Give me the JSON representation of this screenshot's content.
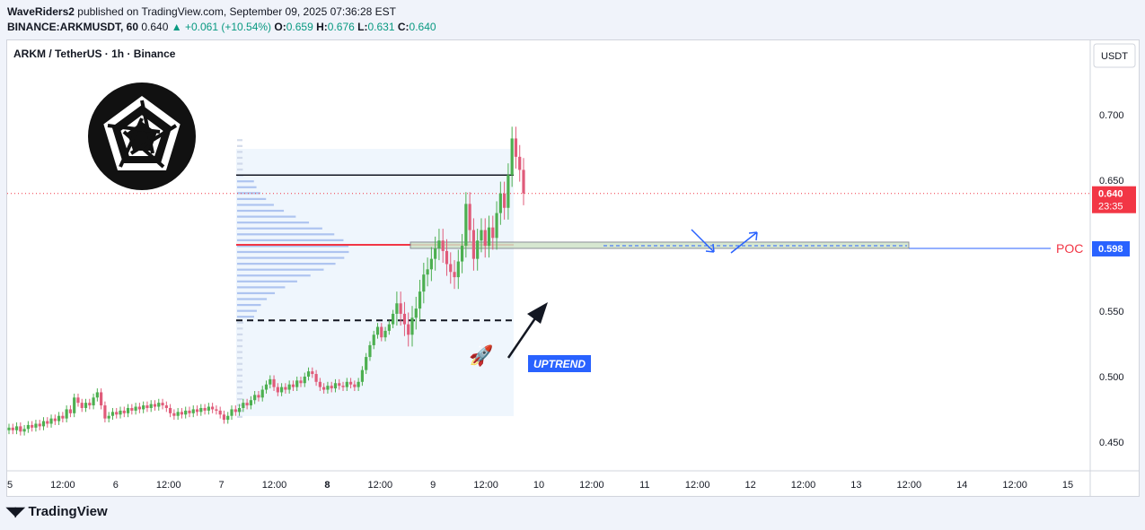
{
  "header": {
    "author": "WaveRiders2",
    "published": "published on TradingView.com, September 09, 2025 07:36:28 EST",
    "symbol_line": "BINANCE:ARKMUSDT, 60",
    "last": "0.640",
    "change": "+0.061 (+10.54%)",
    "o_label": "O:",
    "o": "0.659",
    "h_label": "H:",
    "h": "0.676",
    "l_label": "L:",
    "l": "0.631",
    "c_label": "C:",
    "c": "0.640"
  },
  "chart_title": "ARKM / TetherUS · 1h · Binance",
  "footer_brand": "TradingView",
  "colors": {
    "up": "#089981",
    "down": "#f23645",
    "candle_up": "#4caf50",
    "candle_down": "#e05b7a",
    "poc": "#f23645",
    "accent": "#2962ff"
  },
  "chart_data": {
    "type": "candlestick",
    "price_axis_unit": "USDT",
    "ylim": [
      0.428,
      0.757
    ],
    "y_ticks": [
      "0.750",
      "0.700",
      "0.650",
      "0.600",
      "0.550",
      "0.500",
      "0.450"
    ],
    "x_ticks": [
      "5",
      "12:00",
      "6",
      "12:00",
      "7",
      "12:00",
      "8",
      "12:00",
      "9",
      "12:00",
      "10",
      "12:00",
      "11",
      "12:00",
      "12",
      "12:00",
      "13",
      "12:00",
      "14",
      "12:00",
      "15"
    ],
    "x_tick_bold": [
      false,
      false,
      false,
      false,
      false,
      false,
      true,
      false,
      false,
      false,
      false,
      false,
      false,
      false,
      false,
      false,
      false,
      false,
      false,
      false,
      false
    ],
    "last_price": {
      "value": 0.64,
      "label": "0.640",
      "countdown": "23:35"
    },
    "poc": {
      "value": 0.598,
      "label": "POC",
      "price_label": "0.598"
    },
    "annotations": {
      "uptrend": "UPTREND"
    },
    "volume_profile": {
      "value_area_high": 0.654,
      "value_area_low": 0.543,
      "poc": 0.598
    },
    "closes": [
      0.461,
      0.459,
      0.462,
      0.458,
      0.46,
      0.463,
      0.461,
      0.464,
      0.462,
      0.466,
      0.464,
      0.468,
      0.466,
      0.47,
      0.468,
      0.475,
      0.472,
      0.484,
      0.48,
      0.476,
      0.48,
      0.478,
      0.484,
      0.488,
      0.478,
      0.468,
      0.47,
      0.473,
      0.471,
      0.474,
      0.472,
      0.476,
      0.474,
      0.477,
      0.475,
      0.478,
      0.476,
      0.479,
      0.477,
      0.48,
      0.478,
      0.476,
      0.472,
      0.47,
      0.473,
      0.471,
      0.474,
      0.472,
      0.475,
      0.473,
      0.476,
      0.474,
      0.477,
      0.475,
      0.474,
      0.471,
      0.467,
      0.47,
      0.475,
      0.473,
      0.476,
      0.48,
      0.478,
      0.482,
      0.486,
      0.484,
      0.49,
      0.494,
      0.498,
      0.492,
      0.488,
      0.492,
      0.49,
      0.494,
      0.492,
      0.497,
      0.495,
      0.5,
      0.504,
      0.502,
      0.496,
      0.492,
      0.49,
      0.493,
      0.491,
      0.495,
      0.493,
      0.492,
      0.496,
      0.494,
      0.492,
      0.496,
      0.505,
      0.515,
      0.524,
      0.532,
      0.538,
      0.53,
      0.535,
      0.54,
      0.548,
      0.556,
      0.548,
      0.54,
      0.532,
      0.545,
      0.552,
      0.565,
      0.578,
      0.582,
      0.59,
      0.598,
      0.604,
      0.596,
      0.586,
      0.58,
      0.576,
      0.588,
      0.6,
      0.632,
      0.612,
      0.59,
      0.604,
      0.612,
      0.6,
      0.614,
      0.606,
      0.625,
      0.64,
      0.629,
      0.654,
      0.682,
      0.668,
      0.658,
      0.64
    ]
  }
}
